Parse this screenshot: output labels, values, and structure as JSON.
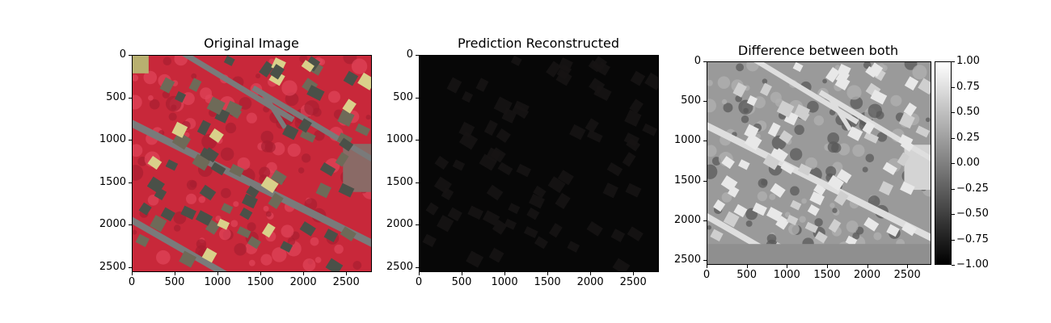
{
  "figure": {
    "panels": [
      {
        "id": "original",
        "title": "Original Image",
        "xticks": [
          "0",
          "500",
          "1000",
          "1500",
          "2000",
          "2500"
        ],
        "yticks": [
          "0",
          "500",
          "1000",
          "1500",
          "2000",
          "2500"
        ]
      },
      {
        "id": "prediction",
        "title": "Prediction Reconstructed",
        "xticks": [
          "0",
          "500",
          "1000",
          "1500",
          "2000",
          "2500"
        ],
        "yticks": [
          "0",
          "500",
          "1000",
          "1500",
          "2000",
          "2500"
        ]
      },
      {
        "id": "difference",
        "title": "Difference between both",
        "xticks": [
          "0",
          "500",
          "1000",
          "1500",
          "2000",
          "2500"
        ],
        "yticks": [
          "0",
          "500",
          "1000",
          "1500",
          "2000",
          "2500"
        ]
      }
    ],
    "colorbar": {
      "ticks": [
        "1.00",
        "0.75",
        "0.50",
        "0.25",
        "0.00",
        "−0.25",
        "−0.50",
        "−0.75",
        "−1.00"
      ],
      "colormap": "gray",
      "range": [
        -1.0,
        1.0
      ]
    },
    "colors": {
      "vegetation": "#c8283a",
      "road": "#7a7a7a",
      "roof_light": "#d9d08a",
      "roof_dark": "#4a5048",
      "prediction_bg": "#070707",
      "difference_bg": "#9a9a9a",
      "difference_pad": "#8f8f8f"
    }
  }
}
